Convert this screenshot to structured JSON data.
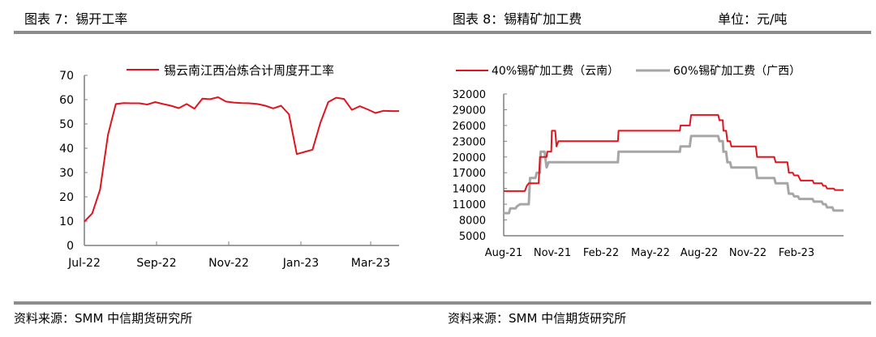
{
  "left_panel": {
    "title": "图表 7：锡开工率",
    "source": "资料来源：SMM 中信期货研究所"
  },
  "right_panel": {
    "title": "图表 8：锡精矿加工费",
    "unit": "单位：元/吨",
    "source": "资料来源：SMM 中信期货研究所"
  },
  "colors": {
    "red": "#e0141e",
    "gray": "#a6a6a6",
    "axis": "#7f7f7f",
    "rule": "#8c8c8c"
  },
  "chart_data": [
    {
      "type": "line",
      "title": "锡开工率",
      "xlabel": "",
      "ylabel": "",
      "ylim": [
        0,
        70
      ],
      "yticks": [
        0,
        10,
        20,
        30,
        40,
        50,
        60,
        70
      ],
      "xtick_labels": [
        "Jul-22",
        "Sep-22",
        "Nov-22",
        "Jan-23",
        "Mar-23"
      ],
      "grid": false,
      "legend_position": "top",
      "series": [
        {
          "name": "锡云南江西冶炼合计周度开工率",
          "color": "#e0141e",
          "x_weeks": [
            0,
            1,
            2,
            3,
            4,
            5,
            6,
            7,
            8,
            9,
            10,
            11,
            12,
            13,
            14,
            15,
            16,
            17,
            18,
            19,
            20,
            21,
            22,
            23,
            24,
            25,
            26,
            27,
            28,
            29,
            30,
            31,
            32,
            33,
            34,
            35,
            36,
            37,
            38,
            39,
            40
          ],
          "values": [
            9.8,
            13.2,
            23,
            45.5,
            58.2,
            58.6,
            58.5,
            58.5,
            58,
            59,
            58.2,
            57.5,
            56.5,
            58.2,
            56.3,
            60.4,
            60.2,
            61,
            59.2,
            58.8,
            58.6,
            58.5,
            58.2,
            57.5,
            56.4,
            57.5,
            54,
            37.6,
            38.5,
            39.4,
            50.5,
            59,
            60.8,
            60.3,
            55.8,
            57.3,
            56,
            54.5,
            55.4,
            55.3,
            55.3
          ]
        }
      ]
    },
    {
      "type": "line",
      "title": "锡精矿加工费",
      "xlabel": "",
      "ylabel": "元/吨",
      "ylim": [
        5000,
        32000
      ],
      "yticks": [
        5000,
        8000,
        11000,
        14000,
        17000,
        20000,
        23000,
        26000,
        29000,
        32000
      ],
      "xtick_labels": [
        "Aug-21",
        "Nov-21",
        "Feb-22",
        "May-22",
        "Aug-22",
        "Nov-22",
        "Feb-23"
      ],
      "grid": false,
      "legend_position": "top",
      "series": [
        {
          "name": "40%锡矿加工费（云南）",
          "color": "#e0141e",
          "points": [
            [
              0,
              13500
            ],
            [
              3.2,
              13500
            ],
            [
              3.5,
              14500
            ],
            [
              3.8,
              15000
            ],
            [
              5.3,
              15000
            ],
            [
              5.5,
              20000
            ],
            [
              6.5,
              20000
            ],
            [
              6.6,
              21000
            ],
            [
              7.2,
              21000
            ],
            [
              7.3,
              25000
            ],
            [
              7.8,
              25000
            ],
            [
              8.0,
              22000
            ],
            [
              8.3,
              23000
            ],
            [
              17.3,
              23000
            ],
            [
              17.4,
              25000
            ],
            [
              26.7,
              25000
            ],
            [
              26.8,
              26000
            ],
            [
              28.2,
              26000
            ],
            [
              28.4,
              28000
            ],
            [
              32.5,
              28000
            ],
            [
              32.7,
              27000
            ],
            [
              33.2,
              27000
            ],
            [
              33.3,
              25000
            ],
            [
              33.7,
              25000
            ],
            [
              33.9,
              23000
            ],
            [
              34.3,
              23000
            ],
            [
              34.5,
              22000
            ],
            [
              38.2,
              22000
            ],
            [
              38.4,
              20000
            ],
            [
              41.0,
              20000
            ],
            [
              41.2,
              19000
            ],
            [
              43.0,
              19000
            ],
            [
              43.2,
              17000
            ],
            [
              43.8,
              17000
            ],
            [
              44.0,
              16500
            ],
            [
              44.6,
              16500
            ],
            [
              44.8,
              16000
            ],
            [
              45.0,
              15500
            ],
            [
              46.8,
              15500
            ],
            [
              47.0,
              15000
            ],
            [
              48.2,
              15000
            ],
            [
              48.4,
              14500
            ],
            [
              48.8,
              14500
            ],
            [
              49.0,
              14000
            ],
            [
              50.0,
              14000
            ],
            [
              50.2,
              13700
            ],
            [
              51.5,
              13700
            ]
          ]
        },
        {
          "name": "60%锡矿加工费（广西）",
          "color": "#a6a6a6",
          "points": [
            [
              0,
              9300
            ],
            [
              0.8,
              9300
            ],
            [
              1.0,
              10200
            ],
            [
              1.8,
              10200
            ],
            [
              2.0,
              10600
            ],
            [
              2.5,
              11000
            ],
            [
              3.8,
              11000
            ],
            [
              4.0,
              16000
            ],
            [
              4.8,
              16000
            ],
            [
              5.0,
              17000
            ],
            [
              5.5,
              17000
            ],
            [
              5.6,
              21000
            ],
            [
              6.2,
              21000
            ],
            [
              6.5,
              18000
            ],
            [
              6.8,
              19000
            ],
            [
              17.3,
              19000
            ],
            [
              17.4,
              21000
            ],
            [
              26.7,
              21000
            ],
            [
              26.8,
              22000
            ],
            [
              28.2,
              22000
            ],
            [
              28.4,
              24000
            ],
            [
              32.5,
              24000
            ],
            [
              32.7,
              23000
            ],
            [
              33.2,
              23000
            ],
            [
              33.3,
              21000
            ],
            [
              33.7,
              21000
            ],
            [
              33.9,
              19000
            ],
            [
              34.3,
              19000
            ],
            [
              34.5,
              18000
            ],
            [
              38.2,
              18000
            ],
            [
              38.4,
              16000
            ],
            [
              41.0,
              16000
            ],
            [
              41.2,
              15000
            ],
            [
              43.0,
              15000
            ],
            [
              43.2,
              13000
            ],
            [
              43.8,
              13000
            ],
            [
              44.0,
              12500
            ],
            [
              44.6,
              12500
            ],
            [
              44.8,
              12000
            ],
            [
              46.8,
              12000
            ],
            [
              47.0,
              11500
            ],
            [
              48.2,
              11500
            ],
            [
              48.4,
              11000
            ],
            [
              48.8,
              11000
            ],
            [
              49.0,
              10400
            ],
            [
              49.8,
              10400
            ],
            [
              50.0,
              9800
            ],
            [
              51.5,
              9800
            ]
          ]
        }
      ]
    }
  ]
}
